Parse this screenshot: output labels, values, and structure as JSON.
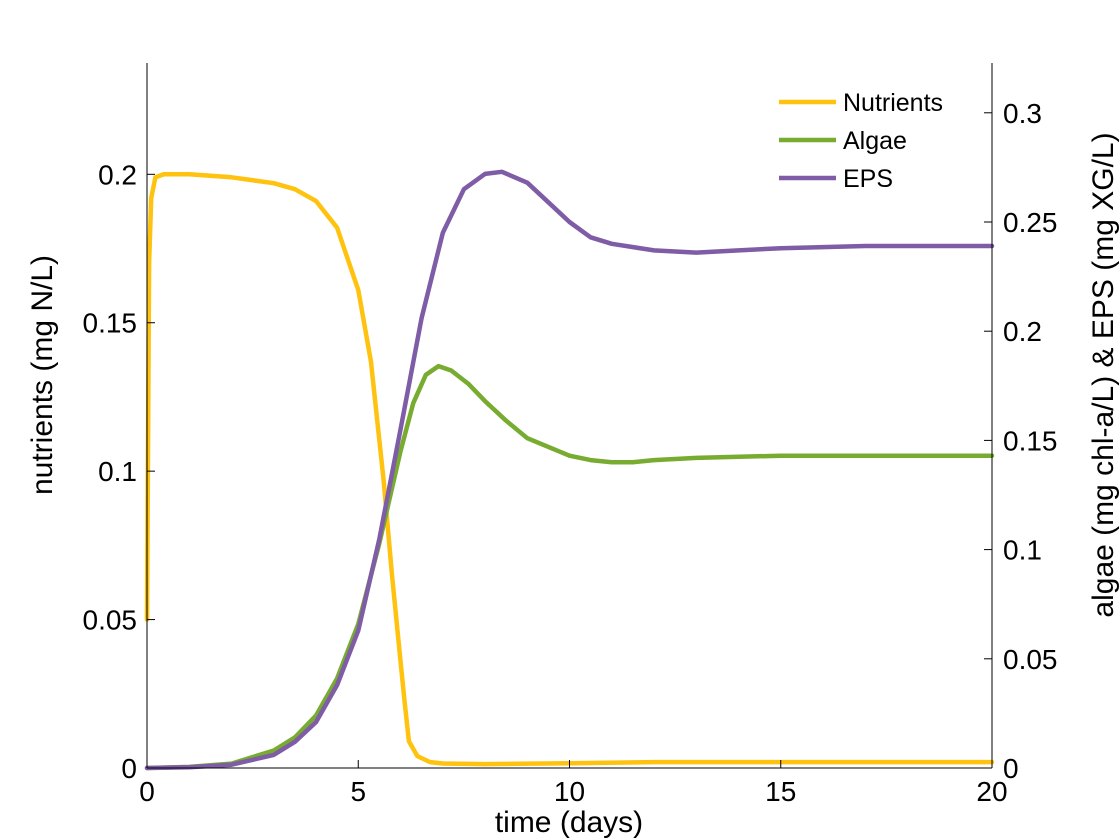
{
  "chart_data": {
    "type": "line",
    "xlabel": "time (days)",
    "ylabel_left": "nutrients (mg N/L)",
    "ylabel_right": "algae (mg chl-a/L) & EPS (mg XG/L)",
    "xlim": [
      0,
      20
    ],
    "ylim_left": [
      0,
      0.2375
    ],
    "ylim_right": [
      0,
      0.3228
    ],
    "x_ticks": [
      "0",
      "5",
      "10",
      "15",
      "20"
    ],
    "y_left_ticks": [
      "0",
      "0.05",
      "0.1",
      "0.15",
      "0.2"
    ],
    "y_right_ticks": [
      "0",
      "0.05",
      "0.1",
      "0.15",
      "0.2",
      "0.25",
      "0.3"
    ],
    "grid": false,
    "legend_position": "top-right",
    "series": [
      {
        "name": "Nutrients",
        "axis": "left",
        "color": "#FFC20E",
        "x": [
          0,
          0.05,
          0.1,
          0.2,
          0.4,
          1,
          2,
          3,
          3.5,
          4,
          4.5,
          5,
          5.3,
          5.6,
          5.8,
          6,
          6.1,
          6.2,
          6.4,
          6.7,
          7,
          8,
          10,
          12,
          15,
          20
        ],
        "y": [
          0.05,
          0.17,
          0.192,
          0.199,
          0.2,
          0.2,
          0.199,
          0.197,
          0.195,
          0.191,
          0.182,
          0.161,
          0.137,
          0.097,
          0.065,
          0.036,
          0.022,
          0.009,
          0.004,
          0.002,
          0.0015,
          0.0013,
          0.0016,
          0.002,
          0.002,
          0.002
        ]
      },
      {
        "name": "Algae",
        "axis": "right",
        "color": "#77AC30",
        "x": [
          0,
          1,
          2,
          3,
          3.5,
          4,
          4.5,
          5,
          5.5,
          6,
          6.3,
          6.6,
          6.9,
          7.2,
          7.6,
          8,
          8.5,
          9,
          10,
          10.5,
          11,
          11.5,
          12,
          13,
          15,
          20
        ],
        "y": [
          0,
          0.0005,
          0.002,
          0.008,
          0.014,
          0.024,
          0.041,
          0.066,
          0.103,
          0.145,
          0.167,
          0.18,
          0.184,
          0.182,
          0.176,
          0.168,
          0.159,
          0.151,
          0.143,
          0.141,
          0.14,
          0.14,
          0.141,
          0.142,
          0.143,
          0.143
        ]
      },
      {
        "name": "EPS",
        "axis": "right",
        "color": "#7E5CA6",
        "x": [
          0,
          1,
          2,
          3,
          3.5,
          4,
          4.5,
          5,
          5.5,
          6,
          6.5,
          7,
          7.5,
          8,
          8.4,
          9,
          9.5,
          10,
          10.5,
          11,
          12,
          13,
          14,
          15,
          17,
          20
        ],
        "y": [
          0,
          0.0003,
          0.0015,
          0.006,
          0.012,
          0.021,
          0.038,
          0.063,
          0.105,
          0.155,
          0.206,
          0.245,
          0.265,
          0.272,
          0.273,
          0.268,
          0.259,
          0.25,
          0.243,
          0.24,
          0.237,
          0.236,
          0.237,
          0.238,
          0.239,
          0.239
        ]
      }
    ]
  }
}
